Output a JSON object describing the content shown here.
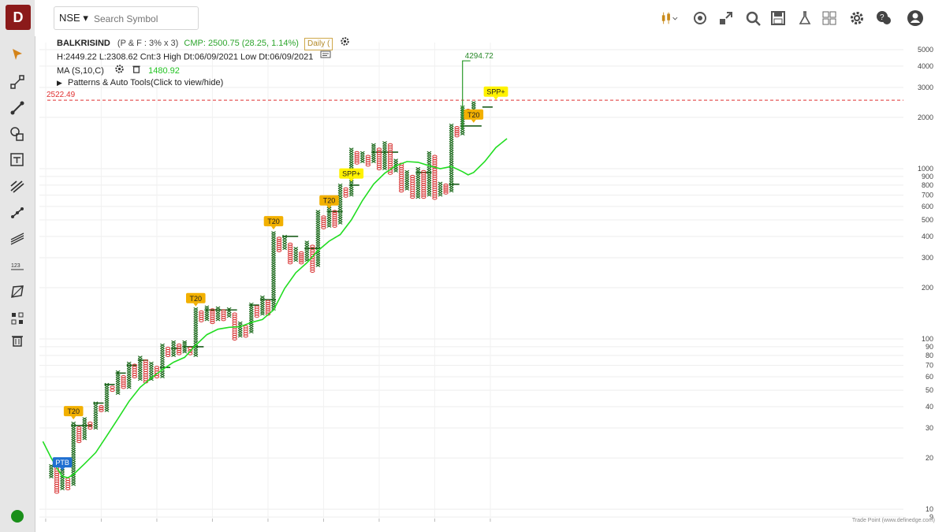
{
  "app": {
    "logo_text": "D"
  },
  "search": {
    "exchange": "NSE",
    "placeholder": "Search Symbol"
  },
  "info": {
    "symbol": "BALKRISIND",
    "chart_params": "(P & F : 3% x 3)",
    "cmp": "CMP: 2500.75 (28.25, 1.14%)",
    "timeframe": "Daily (",
    "stats": "H:2449.22 L:2308.62 Cnt:3 High Dt:06/09/2021 Low Dt:06/09/2021",
    "ma_label": "MA (S,10,C)",
    "ma_value": "1480.92",
    "patterns_label": "Patterns & Auto Tools(Click to view/hide)"
  },
  "credit": "Trade Point (www.definedge.com)",
  "colors": {
    "x_col": "#1e6b1e",
    "o_col": "#d62c2c",
    "ma": "#22dd22",
    "level": "#e03030",
    "badge": "#f2b000",
    "spp": "#fff200",
    "ptb": "#1f6fd1",
    "accent": "#8b1a1a"
  },
  "icons": {
    "sidebar": [
      "cursor-icon",
      "line-tool-icon",
      "trendline-icon",
      "shapes-icon",
      "text-note-icon",
      "fib-icon",
      "channel-icon",
      "parallel-lines-icon",
      "measure-icon",
      "polygon-icon",
      "multi-select-icon",
      "trash-icon"
    ],
    "toolbar": [
      "candlestick-icon",
      "target-icon",
      "expand-icon",
      "scan-icon",
      "save-icon",
      "lab-icon",
      "layout-icon",
      "settings-icon",
      "help-icon",
      "user-icon"
    ]
  },
  "chart_data": {
    "type": "point-and-figure",
    "scale": "log",
    "box_size": "3%",
    "reversal": 3,
    "y_ticks": [
      9,
      10,
      20,
      30,
      40,
      50,
      60,
      70,
      80,
      90,
      100,
      200,
      300,
      400,
      500,
      600,
      700,
      800,
      900,
      1000,
      2000,
      3000,
      4000,
      5000
    ],
    "ylim": [
      9,
      5500
    ],
    "columns": [
      {
        "t": "X",
        "lo": 15.5,
        "hi": 18
      },
      {
        "t": "O",
        "lo": 12.6,
        "hi": 17.5
      },
      {
        "t": "X",
        "lo": 13.2,
        "hi": 17.3
      },
      {
        "t": "O",
        "lo": 13.2,
        "hi": 15
      },
      {
        "t": "X",
        "lo": 14,
        "hi": 32
      },
      {
        "t": "O",
        "lo": 25,
        "hi": 30
      },
      {
        "t": "X",
        "lo": 26,
        "hi": 34
      },
      {
        "t": "O",
        "lo": 30,
        "hi": 32
      },
      {
        "t": "X",
        "lo": 30,
        "hi": 42
      },
      {
        "t": "O",
        "lo": 38,
        "hi": 40
      },
      {
        "t": "X",
        "lo": 38,
        "hi": 54
      },
      {
        "t": "O",
        "lo": 50,
        "hi": 52
      },
      {
        "t": "X",
        "lo": 48,
        "hi": 64
      },
      {
        "t": "O",
        "lo": 52,
        "hi": 60
      },
      {
        "t": "X",
        "lo": 52,
        "hi": 72
      },
      {
        "t": "O",
        "lo": 60,
        "hi": 70
      },
      {
        "t": "X",
        "lo": 58,
        "hi": 78
      },
      {
        "t": "O",
        "lo": 56,
        "hi": 74
      },
      {
        "t": "X",
        "lo": 58,
        "hi": 72
      },
      {
        "t": "O",
        "lo": 60,
        "hi": 68
      },
      {
        "t": "X",
        "lo": 60,
        "hi": 92
      },
      {
        "t": "O",
        "lo": 80,
        "hi": 88
      },
      {
        "t": "X",
        "lo": 80,
        "hi": 96
      },
      {
        "t": "O",
        "lo": 82,
        "hi": 92
      },
      {
        "t": "X",
        "lo": 84,
        "hi": 96
      },
      {
        "t": "O",
        "lo": 82,
        "hi": 88
      },
      {
        "t": "X",
        "lo": 80,
        "hi": 150
      },
      {
        "t": "O",
        "lo": 128,
        "hi": 144
      },
      {
        "t": "X",
        "lo": 130,
        "hi": 154
      },
      {
        "t": "O",
        "lo": 125,
        "hi": 148
      },
      {
        "t": "X",
        "lo": 130,
        "hi": 152
      },
      {
        "t": "O",
        "lo": 130,
        "hi": 146
      },
      {
        "t": "X",
        "lo": 136,
        "hi": 150
      },
      {
        "t": "O",
        "lo": 100,
        "hi": 140
      },
      {
        "t": "X",
        "lo": 104,
        "hi": 124
      },
      {
        "t": "O",
        "lo": 104,
        "hi": 118
      },
      {
        "t": "X",
        "lo": 110,
        "hi": 160
      },
      {
        "t": "O",
        "lo": 136,
        "hi": 154
      },
      {
        "t": "X",
        "lo": 140,
        "hi": 176
      },
      {
        "t": "O",
        "lo": 140,
        "hi": 166
      },
      {
        "t": "X",
        "lo": 150,
        "hi": 420
      },
      {
        "t": "O",
        "lo": 330,
        "hi": 390
      },
      {
        "t": "X",
        "lo": 340,
        "hi": 400
      },
      {
        "t": "O",
        "lo": 280,
        "hi": 360
      },
      {
        "t": "X",
        "lo": 290,
        "hi": 340
      },
      {
        "t": "O",
        "lo": 280,
        "hi": 320
      },
      {
        "t": "X",
        "lo": 290,
        "hi": 370
      },
      {
        "t": "O",
        "lo": 250,
        "hi": 350
      },
      {
        "t": "X",
        "lo": 270,
        "hi": 560
      },
      {
        "t": "O",
        "lo": 450,
        "hi": 520
      },
      {
        "t": "X",
        "lo": 460,
        "hi": 600
      },
      {
        "t": "O",
        "lo": 460,
        "hi": 560
      },
      {
        "t": "X",
        "lo": 480,
        "hi": 800
      },
      {
        "t": "O",
        "lo": 690,
        "hi": 760
      },
      {
        "t": "X",
        "lo": 700,
        "hi": 1300
      },
      {
        "t": "O",
        "lo": 1080,
        "hi": 1240
      },
      {
        "t": "X",
        "lo": 1100,
        "hi": 1240
      },
      {
        "t": "O",
        "lo": 1050,
        "hi": 1180
      },
      {
        "t": "X",
        "lo": 1100,
        "hi": 1380
      },
      {
        "t": "O",
        "lo": 1000,
        "hi": 1300
      },
      {
        "t": "X",
        "lo": 1000,
        "hi": 1420
      },
      {
        "t": "O",
        "lo": 940,
        "hi": 1380
      },
      {
        "t": "X",
        "lo": 970,
        "hi": 1120
      },
      {
        "t": "O",
        "lo": 740,
        "hi": 1060
      },
      {
        "t": "X",
        "lo": 760,
        "hi": 960
      },
      {
        "t": "O",
        "lo": 680,
        "hi": 900
      },
      {
        "t": "X",
        "lo": 680,
        "hi": 1000
      },
      {
        "t": "O",
        "lo": 680,
        "hi": 960
      },
      {
        "t": "X",
        "lo": 700,
        "hi": 1240
      },
      {
        "t": "O",
        "lo": 670,
        "hi": 1180
      },
      {
        "t": "X",
        "lo": 700,
        "hi": 820
      },
      {
        "t": "O",
        "lo": 720,
        "hi": 800
      },
      {
        "t": "X",
        "lo": 740,
        "hi": 1800
      },
      {
        "t": "O",
        "lo": 1560,
        "hi": 1740
      },
      {
        "t": "X",
        "lo": 1600,
        "hi": 2300
      },
      {
        "t": "O",
        "lo": 2080,
        "hi": 2200
      },
      {
        "t": "X",
        "lo": 2180,
        "hi": 2440
      }
    ],
    "ma_series": [
      {
        "col": -1.5,
        "v": 25
      },
      {
        "col": 0,
        "v": 20
      },
      {
        "col": 1,
        "v": 17.5
      },
      {
        "col": 2,
        "v": 15.6
      },
      {
        "col": 3,
        "v": 15.3
      },
      {
        "col": 4,
        "v": 16
      },
      {
        "col": 6,
        "v": 18.5
      },
      {
        "col": 8,
        "v": 21.5
      },
      {
        "col": 10,
        "v": 27
      },
      {
        "col": 12,
        "v": 34
      },
      {
        "col": 14,
        "v": 43
      },
      {
        "col": 16,
        "v": 52
      },
      {
        "col": 18,
        "v": 59
      },
      {
        "col": 20,
        "v": 66
      },
      {
        "col": 22,
        "v": 73
      },
      {
        "col": 24,
        "v": 78
      },
      {
        "col": 26,
        "v": 92
      },
      {
        "col": 28,
        "v": 106
      },
      {
        "col": 30,
        "v": 114
      },
      {
        "col": 32,
        "v": 117
      },
      {
        "col": 34,
        "v": 118
      },
      {
        "col": 36,
        "v": 125
      },
      {
        "col": 38,
        "v": 130
      },
      {
        "col": 40,
        "v": 148
      },
      {
        "col": 42,
        "v": 198
      },
      {
        "col": 44,
        "v": 245
      },
      {
        "col": 46,
        "v": 280
      },
      {
        "col": 48,
        "v": 330
      },
      {
        "col": 50,
        "v": 375
      },
      {
        "col": 52,
        "v": 410
      },
      {
        "col": 54,
        "v": 500
      },
      {
        "col": 56,
        "v": 650
      },
      {
        "col": 58,
        "v": 810
      },
      {
        "col": 60,
        "v": 940
      },
      {
        "col": 62,
        "v": 1040
      },
      {
        "col": 64,
        "v": 1100
      },
      {
        "col": 66,
        "v": 1090
      },
      {
        "col": 68,
        "v": 1040
      },
      {
        "col": 70,
        "v": 1000
      },
      {
        "col": 72,
        "v": 1030
      },
      {
        "col": 74,
        "v": 960
      },
      {
        "col": 75,
        "v": 920
      },
      {
        "col": 76,
        "v": 950
      },
      {
        "col": 78,
        "v": 1100
      },
      {
        "col": 80,
        "v": 1330
      },
      {
        "col": 82,
        "v": 1500
      }
    ],
    "annotations": [
      {
        "text": "PTB",
        "col": 2,
        "v": 16.5,
        "kind": "ptb"
      },
      {
        "text": "T20",
        "col": 4,
        "v": 33,
        "kind": "t20"
      },
      {
        "text": "T20",
        "col": 26,
        "v": 152,
        "kind": "t20"
      },
      {
        "text": "T20",
        "col": 40,
        "v": 430,
        "kind": "t20"
      },
      {
        "text": "T20",
        "col": 50,
        "v": 570,
        "kind": "t20"
      },
      {
        "text": "SPP+",
        "col": 54,
        "v": 820,
        "kind": "spp"
      },
      {
        "text": "T20",
        "col": 76,
        "v": 1820,
        "kind": "t20"
      },
      {
        "text": "SPP+",
        "col": 80,
        "v": 2480,
        "kind": "spp"
      }
    ],
    "spike": {
      "col": 74,
      "from": 1700,
      "to": 4294.72,
      "label": "4294.72"
    },
    "level_line": {
      "value": 2522.49,
      "label": "2522.49"
    },
    "trend_steps": [
      {
        "c0": 4,
        "c1": 7,
        "v": 31
      },
      {
        "c0": 8,
        "c1": 9,
        "v": 42
      },
      {
        "c0": 10,
        "c1": 11,
        "v": 54
      },
      {
        "c0": 12,
        "c1": 13,
        "v": 63
      },
      {
        "c0": 14,
        "c1": 15,
        "v": 70
      },
      {
        "c0": 16,
        "c1": 17,
        "v": 75
      },
      {
        "c0": 20,
        "c1": 21,
        "v": 68
      },
      {
        "c0": 22,
        "c1": 23,
        "v": 88
      },
      {
        "c0": 24,
        "c1": 27,
        "v": 90
      },
      {
        "c0": 28,
        "c1": 33,
        "v": 148
      },
      {
        "c0": 36,
        "c1": 37,
        "v": 158
      },
      {
        "c0": 38,
        "c1": 40,
        "v": 170
      },
      {
        "c0": 42,
        "c1": 44,
        "v": 400
      },
      {
        "c0": 46,
        "c1": 48,
        "v": 340
      },
      {
        "c0": 50,
        "c1": 52,
        "v": 560
      },
      {
        "c0": 54,
        "c1": 55,
        "v": 800
      },
      {
        "c0": 58,
        "c1": 62,
        "v": 1250
      },
      {
        "c0": 66,
        "c1": 68,
        "v": 950
      },
      {
        "c0": 72,
        "c1": 73,
        "v": 810
      },
      {
        "c0": 74,
        "c1": 77,
        "v": 1780
      },
      {
        "c0": 78,
        "c1": 79,
        "v": 2300
      }
    ]
  }
}
